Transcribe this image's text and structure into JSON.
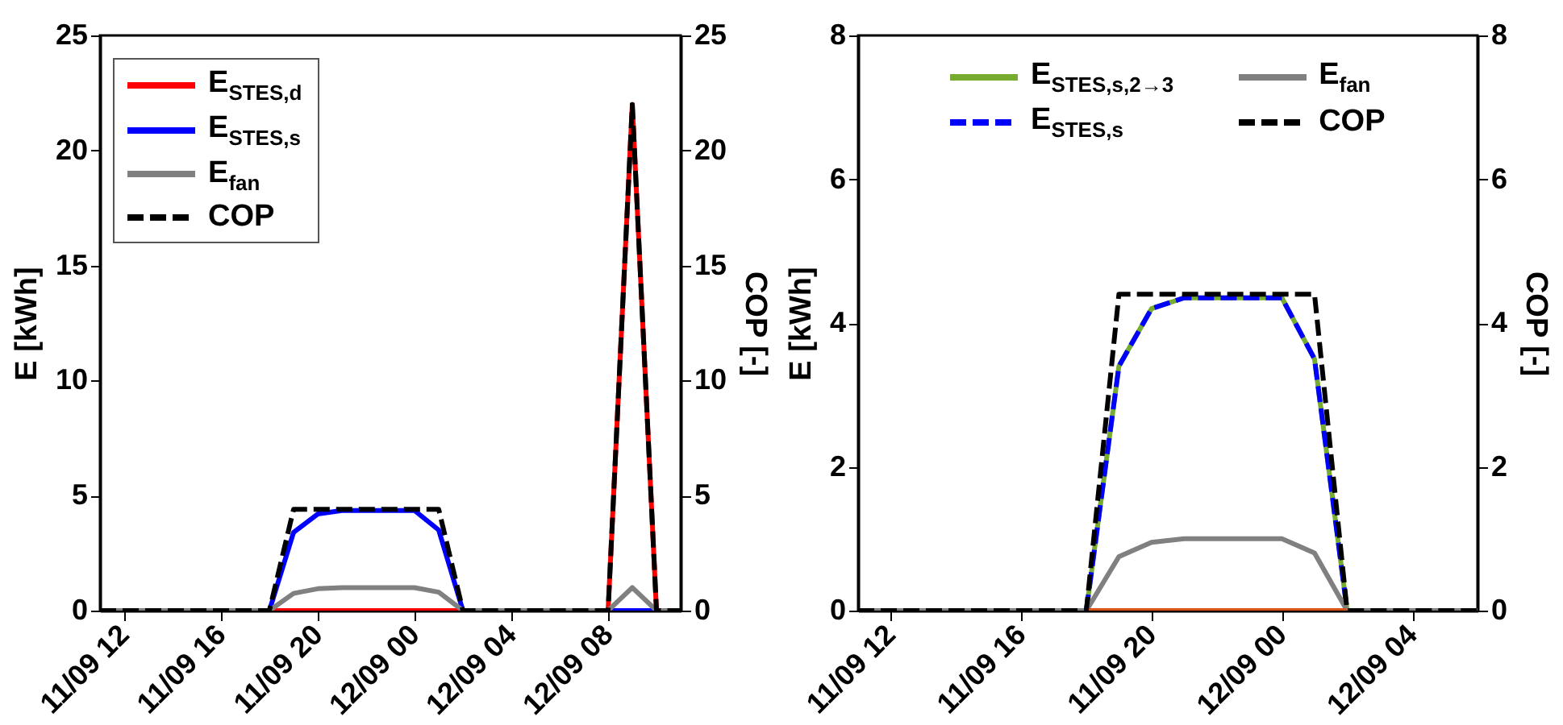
{
  "chart_data": [
    {
      "type": "line",
      "ylabel": "E [kWh]",
      "y2label": "COP [-]",
      "legend": "top left",
      "categories": [
        null,
        "11/09 12",
        null,
        null,
        null,
        "11/09 16",
        null,
        null,
        null,
        "11/09 20",
        null,
        null,
        null,
        "12/09 00",
        null,
        null,
        null,
        "12/09 04",
        null,
        null,
        null,
        "12/09 08",
        null,
        null,
        null
      ],
      "ylim": [
        0,
        25
      ],
      "yticks": [
        0,
        5,
        10,
        15,
        20,
        25
      ],
      "y2lim": [
        0,
        25
      ],
      "y2ticks": [
        0,
        5,
        10,
        15,
        20,
        25
      ],
      "series": [
        {
          "name": "E$_{STES,d}$",
          "color": "#ff0000",
          "line_style": "solid",
          "values": [
            null,
            null,
            null,
            null,
            null,
            null,
            null,
            0,
            0,
            0,
            0,
            0,
            0,
            0,
            0,
            0,
            null,
            null,
            null,
            null,
            null,
            0,
            22,
            0,
            null
          ]
        },
        {
          "name": "E$_{STES,s}$",
          "color": "#0000ff",
          "line_style": "solid",
          "values": [
            null,
            null,
            null,
            null,
            null,
            null,
            null,
            0,
            3.4,
            4.2,
            4.35,
            4.35,
            4.35,
            4.35,
            3.5,
            0,
            null,
            null,
            null,
            null,
            null,
            0,
            0,
            0,
            null
          ]
        },
        {
          "name": "E$_{fan}$",
          "color": "#808080",
          "line_style": "solid",
          "values": [
            0,
            0,
            0,
            0,
            0,
            0,
            0,
            0,
            0.75,
            0.95,
            1,
            1,
            1,
            1,
            0.8,
            0,
            0,
            0,
            0,
            0,
            0,
            0,
            1,
            0,
            0
          ]
        },
        {
          "name": "COP",
          "color": "#000000",
          "line_style": "dashed",
          "axis": "y2",
          "values": [
            0,
            0,
            0,
            0,
            0,
            0,
            0,
            0,
            4.4,
            4.4,
            4.4,
            4.4,
            4.4,
            4.4,
            4.4,
            0,
            0,
            0,
            0,
            0,
            0,
            0,
            22,
            0,
            0
          ]
        }
      ]
    },
    {
      "type": "line",
      "ylabel": "E [kWh]",
      "y2label": "COP [-]",
      "legend": "top",
      "categories": [
        null,
        "11/09 12",
        null,
        null,
        null,
        "11/09 16",
        null,
        null,
        null,
        "11/09 20",
        null,
        null,
        null,
        "12/09 00",
        null,
        null,
        null,
        "12/09 04",
        null,
        null
      ],
      "ylim": [
        0,
        8
      ],
      "yticks": [
        0,
        2,
        4,
        6,
        8
      ],
      "y2lim": [
        0,
        8
      ],
      "y2ticks": [
        0,
        2,
        4,
        6,
        8
      ],
      "series": [
        {
          "name": "E$_{STES,s,2→3}$",
          "color": "#77ac30",
          "line_style": "solid",
          "values": [
            null,
            null,
            null,
            null,
            null,
            null,
            null,
            0,
            3.4,
            4.2,
            4.35,
            4.35,
            4.35,
            4.35,
            3.5,
            0,
            null,
            null,
            null,
            null
          ]
        },
        {
          "name": "E$_{STES,s}$",
          "color": "#0000ff",
          "line_style": "dashed",
          "values": [
            null,
            null,
            null,
            null,
            null,
            null,
            null,
            0,
            3.4,
            4.2,
            4.35,
            4.35,
            4.35,
            4.35,
            3.5,
            0,
            null,
            null,
            null,
            null
          ]
        },
        {
          "name": "E$_{fan}$",
          "color": "#808080",
          "line_style": "solid",
          "values": [
            0,
            0,
            0,
            0,
            0,
            0,
            0,
            0,
            0.75,
            0.95,
            1,
            1,
            1,
            1,
            0.8,
            0,
            0,
            0,
            0,
            0
          ]
        },
        {
          "name": "COP",
          "color": "#000000",
          "line_style": "dashed",
          "axis": "y2",
          "values": [
            0,
            0,
            0,
            0,
            0,
            0,
            0,
            0,
            4.4,
            4.4,
            4.4,
            4.4,
            4.4,
            4.4,
            4.4,
            0,
            0,
            0,
            0,
            0
          ]
        },
        {
          "color": "#d95319",
          "line_style": "solid",
          "values": [
            null,
            null,
            null,
            null,
            null,
            null,
            null,
            0,
            0,
            0,
            0,
            0,
            0,
            0,
            0,
            0,
            null,
            null,
            null,
            null
          ]
        }
      ]
    }
  ]
}
